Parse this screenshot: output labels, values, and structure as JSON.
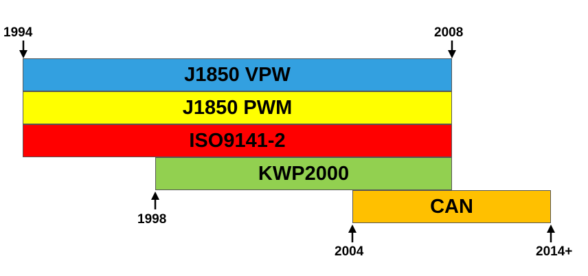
{
  "timeline": {
    "protocols": [
      {
        "label": "J1850 VPW",
        "start": "1994",
        "end": "2008",
        "color": "#33a0e0"
      },
      {
        "label": "J1850 PWM",
        "start": "1994",
        "end": "2008",
        "color": "#ffff00"
      },
      {
        "label": "ISO9141-2",
        "start": "1994",
        "end": "2008",
        "color": "#ff0000"
      },
      {
        "label": "KWP2000",
        "start": "1998",
        "end": "2008",
        "color": "#92d050"
      },
      {
        "label": "CAN",
        "start": "2004",
        "end": "2014+",
        "color": "#ffc000"
      }
    ],
    "markers": {
      "y1994": "1994",
      "y2008": "2008",
      "y1998": "1998",
      "y2004": "2004",
      "y2014": "2014+"
    }
  }
}
